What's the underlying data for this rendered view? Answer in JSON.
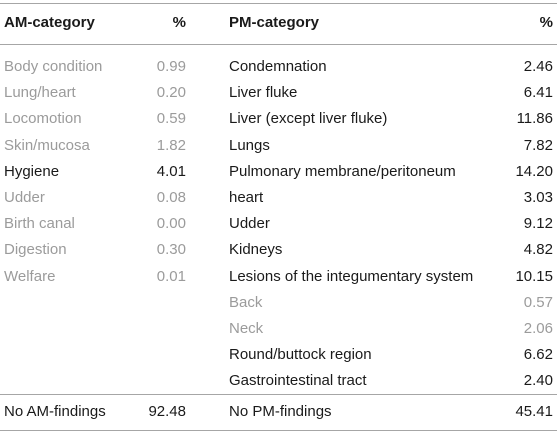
{
  "table": {
    "headers": [
      "AM-category",
      "%",
      "PM-category",
      "%"
    ],
    "am_rows": [
      {
        "label": "Body condition",
        "value": "0.99",
        "muted": true
      },
      {
        "label": "Lung/heart",
        "value": "0.20",
        "muted": true
      },
      {
        "label": "Locomotion",
        "value": "0.59",
        "muted": true
      },
      {
        "label": "Skin/mucosa",
        "value": "1.82",
        "muted": true
      },
      {
        "label": "Hygiene",
        "value": "4.01",
        "muted": false
      },
      {
        "label": "Udder",
        "value": "0.08",
        "muted": true
      },
      {
        "label": "Birth canal",
        "value": "0.00",
        "muted": true
      },
      {
        "label": "Digestion",
        "value": "0.30",
        "muted": true
      },
      {
        "label": "Welfare",
        "value": "0.01",
        "muted": true
      }
    ],
    "pm_rows": [
      {
        "label": "Condemnation",
        "value": "2.46",
        "muted": false
      },
      {
        "label": "Liver fluke",
        "value": "6.41",
        "muted": false
      },
      {
        "label": "Liver (except liver fluke)",
        "value": "11.86",
        "muted": false
      },
      {
        "label": "Lungs",
        "value": "7.82",
        "muted": false
      },
      {
        "label": "Pulmonary membrane/peritoneum",
        "value": "14.20",
        "muted": false
      },
      {
        "label": "heart",
        "value": "3.03",
        "muted": false
      },
      {
        "label": "Udder",
        "value": "9.12",
        "muted": false
      },
      {
        "label": "Kidneys",
        "value": "4.82",
        "muted": false
      },
      {
        "label": "Lesions of the integumentary system",
        "value": "10.15",
        "muted": false
      },
      {
        "label": "Back",
        "value": "0.57",
        "muted": true
      },
      {
        "label": "Neck",
        "value": "2.06",
        "muted": true
      },
      {
        "label": "Round/buttock region",
        "value": "6.62",
        "muted": false
      },
      {
        "label": "Gastrointestinal tract",
        "value": "2.40",
        "muted": false
      }
    ],
    "footer": {
      "am_label": "No AM-findings",
      "am_value": "92.48",
      "pm_label": "No PM-findings",
      "pm_value": "45.41"
    }
  }
}
